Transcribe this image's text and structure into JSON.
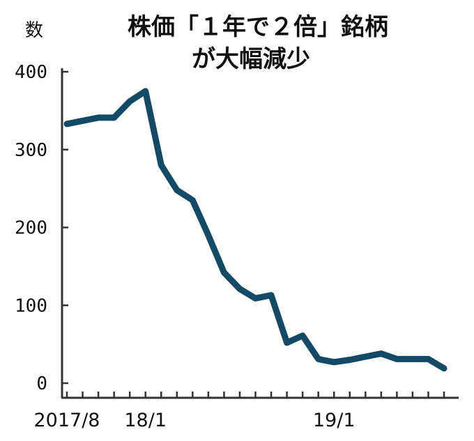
{
  "chart_data": {
    "type": "line",
    "title": "株価「１年で２倍」銘柄",
    "subtitle": "が大幅減少",
    "ylabel": "数",
    "xlabel": "",
    "ylim": [
      0,
      400
    ],
    "yticks": [
      0,
      100,
      200,
      300,
      400
    ],
    "x_tick_labels": [
      {
        "index": 0,
        "label": "2017/8"
      },
      {
        "index": 5,
        "label": "18/1"
      },
      {
        "index": 17,
        "label": "19/1"
      }
    ],
    "grid": false,
    "series_color": "#134b66",
    "series": [
      {
        "values": [
          333,
          337,
          341,
          341,
          362,
          375,
          280,
          248,
          235,
          190,
          142,
          121,
          109,
          113,
          52,
          61,
          31,
          27,
          30,
          34,
          38,
          31,
          31,
          31,
          19
        ]
      }
    ]
  }
}
